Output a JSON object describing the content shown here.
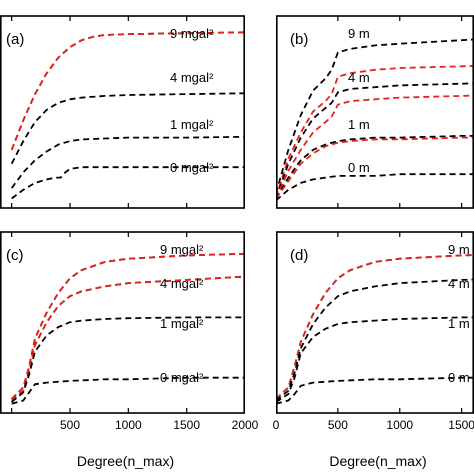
{
  "chart_data": [
    {
      "type": "line",
      "panel_label": "(a)",
      "xlim": [
        0,
        2000
      ],
      "ylim": [
        0,
        1
      ],
      "curve_labels": [
        "9 mgal²",
        "4 mgal²",
        "1 mgal²",
        "0 mgal²"
      ],
      "series": [
        {
          "color": "black",
          "x": [
            0,
            100,
            200,
            300,
            400,
            500,
            600,
            700,
            800,
            1000,
            1500,
            2000
          ],
          "y": [
            0.3,
            0.47,
            0.62,
            0.74,
            0.83,
            0.89,
            0.93,
            0.95,
            0.96,
            0.965,
            0.97,
            0.975
          ]
        },
        {
          "color": "red",
          "x": [
            0,
            100,
            200,
            300,
            400,
            500,
            600,
            700,
            800,
            1000,
            1500,
            2000
          ],
          "y": [
            0.3,
            0.47,
            0.62,
            0.74,
            0.83,
            0.89,
            0.93,
            0.95,
            0.96,
            0.965,
            0.97,
            0.975
          ]
        },
        {
          "color": "black",
          "x": [
            0,
            100,
            200,
            300,
            400,
            500,
            600,
            800,
            1000,
            1500,
            2000
          ],
          "y": [
            0.22,
            0.35,
            0.46,
            0.53,
            0.57,
            0.59,
            0.6,
            0.61,
            0.615,
            0.62,
            0.625
          ]
        },
        {
          "color": "black",
          "x": [
            0,
            100,
            200,
            300,
            400,
            500,
            600,
            800,
            1000,
            1500,
            2000
          ],
          "y": [
            0.08,
            0.17,
            0.24,
            0.29,
            0.33,
            0.35,
            0.36,
            0.365,
            0.37,
            0.37,
            0.375
          ]
        },
        {
          "color": "black",
          "x": [
            0,
            100,
            200,
            300,
            380,
            420,
            460,
            500,
            600,
            800,
            1000,
            1500,
            2000
          ],
          "y": [
            0.02,
            0.07,
            0.11,
            0.13,
            0.14,
            0.14,
            0.17,
            0.19,
            0.2,
            0.2,
            0.2,
            0.2,
            0.2
          ]
        }
      ]
    },
    {
      "type": "line",
      "panel_label": "(b)",
      "xlim": [
        0,
        2000
      ],
      "ylim": [
        0,
        1
      ],
      "curve_labels": [
        "9 m",
        "4 m",
        "1 m",
        "0 m"
      ],
      "series": [
        {
          "color": "black",
          "x": [
            0,
            100,
            200,
            300,
            400,
            450,
            500,
            600,
            800,
            1000,
            1500,
            2000
          ],
          "y": [
            0.05,
            0.3,
            0.5,
            0.64,
            0.71,
            0.76,
            0.86,
            0.88,
            0.9,
            0.91,
            0.93,
            0.95
          ]
        },
        {
          "color": "red",
          "x": [
            0,
            100,
            200,
            300,
            400,
            450,
            500,
            600,
            800,
            1000,
            1500,
            2000
          ],
          "y": [
            0.03,
            0.25,
            0.4,
            0.52,
            0.58,
            0.62,
            0.72,
            0.74,
            0.76,
            0.77,
            0.78,
            0.79
          ]
        },
        {
          "color": "black",
          "x": [
            0,
            100,
            200,
            300,
            400,
            450,
            500,
            600,
            800,
            1000,
            1500,
            2000
          ],
          "y": [
            0.02,
            0.22,
            0.37,
            0.48,
            0.54,
            0.57,
            0.63,
            0.65,
            0.66,
            0.67,
            0.68,
            0.69
          ]
        },
        {
          "color": "red",
          "x": [
            0,
            100,
            200,
            300,
            400,
            450,
            500,
            600,
            800,
            1000,
            1500,
            2000
          ],
          "y": [
            0.02,
            0.18,
            0.3,
            0.4,
            0.46,
            0.49,
            0.56,
            0.58,
            0.59,
            0.6,
            0.61,
            0.62
          ]
        },
        {
          "color": "black",
          "x": [
            0,
            100,
            200,
            300,
            400,
            500,
            600,
            800,
            1000,
            1500,
            2000
          ],
          "y": [
            0.02,
            0.14,
            0.24,
            0.3,
            0.33,
            0.35,
            0.36,
            0.37,
            0.37,
            0.38,
            0.38
          ]
        },
        {
          "color": "red",
          "x": [
            0,
            100,
            200,
            300,
            400,
            500,
            600,
            800,
            1000,
            1500,
            2000
          ],
          "y": [
            0.02,
            0.12,
            0.22,
            0.28,
            0.32,
            0.34,
            0.35,
            0.36,
            0.36,
            0.37,
            0.37
          ]
        },
        {
          "color": "black",
          "x": [
            0,
            100,
            200,
            300,
            400,
            500,
            600,
            800,
            1000,
            1500,
            2000
          ],
          "y": [
            0.01,
            0.07,
            0.11,
            0.13,
            0.14,
            0.15,
            0.15,
            0.15,
            0.16,
            0.16,
            0.16
          ]
        }
      ]
    },
    {
      "type": "line",
      "panel_label": "(c)",
      "xlabel": "Degree(n_max)",
      "xticks": [
        500,
        1000,
        1500,
        2000
      ],
      "xlim": [
        0,
        2000
      ],
      "ylim": [
        0,
        1
      ],
      "curve_labels": [
        "9 mgal²",
        "4 mgal²",
        "1 mgal²",
        "0 mgal²"
      ],
      "series": [
        {
          "color": "black",
          "x": [
            0,
            100,
            150,
            200,
            300,
            400,
            500,
            600,
            800,
            1000,
            1500,
            2000
          ],
          "y": [
            0.05,
            0.12,
            0.25,
            0.42,
            0.58,
            0.7,
            0.79,
            0.84,
            0.89,
            0.91,
            0.93,
            0.94
          ]
        },
        {
          "color": "red",
          "x": [
            0,
            100,
            150,
            200,
            300,
            400,
            500,
            600,
            800,
            1000,
            1500,
            2000
          ],
          "y": [
            0.05,
            0.12,
            0.25,
            0.42,
            0.58,
            0.7,
            0.79,
            0.84,
            0.89,
            0.91,
            0.93,
            0.94
          ]
        },
        {
          "color": "black",
          "x": [
            0,
            100,
            150,
            200,
            300,
            400,
            500,
            600,
            800,
            1000,
            1500,
            2000
          ],
          "y": [
            0.04,
            0.1,
            0.22,
            0.38,
            0.52,
            0.62,
            0.68,
            0.71,
            0.74,
            0.76,
            0.78,
            0.8
          ]
        },
        {
          "color": "red",
          "x": [
            0,
            100,
            150,
            200,
            300,
            400,
            500,
            600,
            800,
            1000,
            1500,
            2000
          ],
          "y": [
            0.04,
            0.1,
            0.22,
            0.38,
            0.52,
            0.62,
            0.68,
            0.71,
            0.74,
            0.76,
            0.78,
            0.8
          ]
        },
        {
          "color": "black",
          "x": [
            0,
            100,
            150,
            200,
            300,
            400,
            500,
            600,
            800,
            1000,
            1500,
            2000
          ],
          "y": [
            0.03,
            0.09,
            0.2,
            0.34,
            0.44,
            0.49,
            0.52,
            0.53,
            0.54,
            0.545,
            0.55,
            0.55
          ]
        },
        {
          "color": "black",
          "x": [
            0,
            100,
            150,
            200,
            300,
            500,
            800,
            1000,
            1500,
            2000
          ],
          "y": [
            0.02,
            0.04,
            0.09,
            0.14,
            0.15,
            0.16,
            0.17,
            0.17,
            0.18,
            0.18
          ]
        }
      ]
    },
    {
      "type": "line",
      "panel_label": "(d)",
      "xlabel": "Degree(n_max)",
      "xticks": [
        0,
        500,
        1000,
        1500
      ],
      "xlim": [
        0,
        2000
      ],
      "ylim": [
        0,
        1
      ],
      "curve_labels": [
        "9 m",
        "4 m",
        "1 m",
        "0 m"
      ],
      "series": [
        {
          "color": "black",
          "x": [
            0,
            100,
            150,
            200,
            300,
            400,
            500,
            600,
            800,
            1000,
            1500,
            2000
          ],
          "y": [
            0.05,
            0.12,
            0.25,
            0.4,
            0.57,
            0.7,
            0.79,
            0.84,
            0.89,
            0.91,
            0.93,
            0.94
          ]
        },
        {
          "color": "red",
          "x": [
            0,
            100,
            150,
            200,
            300,
            400,
            500,
            600,
            800,
            1000,
            1500,
            2000
          ],
          "y": [
            0.05,
            0.12,
            0.25,
            0.4,
            0.57,
            0.7,
            0.79,
            0.84,
            0.89,
            0.91,
            0.93,
            0.94
          ]
        },
        {
          "color": "black",
          "x": [
            0,
            100,
            150,
            200,
            300,
            400,
            500,
            600,
            800,
            1000,
            1500,
            2000
          ],
          "y": [
            0.04,
            0.1,
            0.21,
            0.36,
            0.51,
            0.61,
            0.68,
            0.71,
            0.74,
            0.76,
            0.78,
            0.79
          ]
        },
        {
          "color": "black",
          "x": [
            0,
            100,
            150,
            200,
            300,
            400,
            500,
            600,
            800,
            1000,
            1500,
            2000
          ],
          "y": [
            0.03,
            0.08,
            0.18,
            0.33,
            0.43,
            0.48,
            0.51,
            0.52,
            0.53,
            0.54,
            0.55,
            0.55
          ]
        },
        {
          "color": "black",
          "x": [
            0,
            100,
            150,
            200,
            300,
            500,
            800,
            1000,
            1500,
            2000
          ],
          "y": [
            0.02,
            0.04,
            0.08,
            0.13,
            0.15,
            0.16,
            0.17,
            0.17,
            0.18,
            0.18
          ]
        }
      ]
    }
  ]
}
